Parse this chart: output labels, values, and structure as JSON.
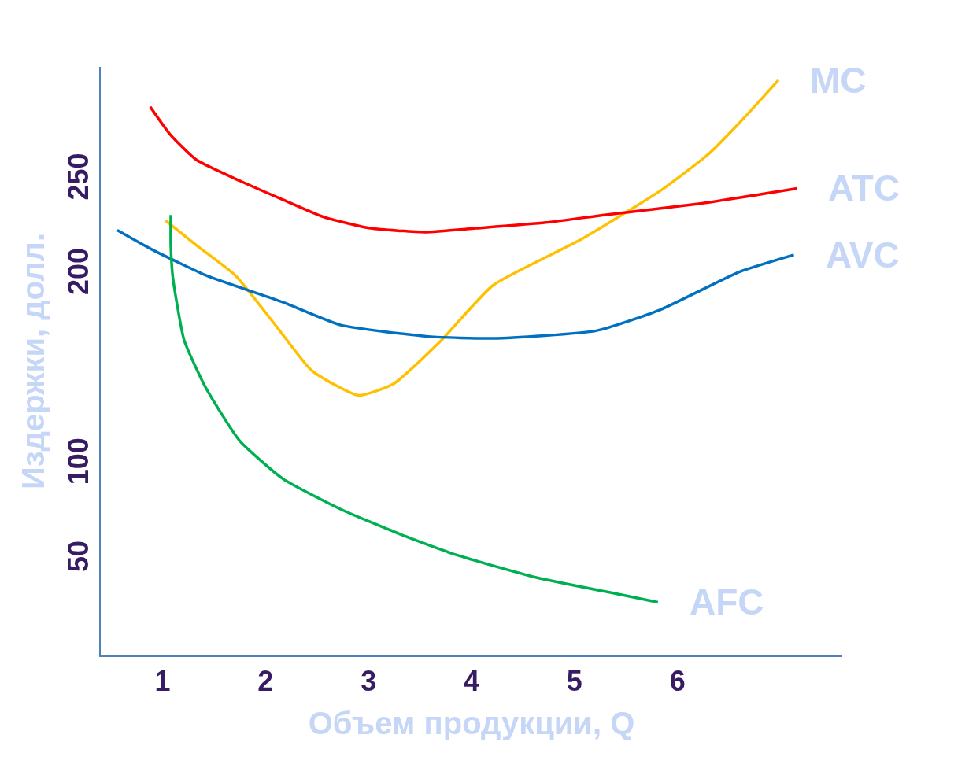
{
  "chart_data": {
    "type": "line",
    "xlabel": "Объем продукции, Q",
    "ylabel": "Издержки, долл.",
    "xlim": [
      0.4,
      7.6
    ],
    "xticks": [
      1,
      2,
      3,
      4,
      5,
      6
    ],
    "ylim": [
      0,
      310
    ],
    "yticks": [
      50,
      100,
      200,
      250
    ],
    "legend": false,
    "marker": "none",
    "line_style": "solid",
    "series": [
      {
        "name": "MC",
        "color": "#ffc000",
        "x": [
          1.03,
          1.33,
          1.71,
          2.11,
          2.45,
          2.9,
          3.24,
          3.69,
          4.21,
          5.06,
          5.84,
          6.3,
          6.61,
          6.98
        ],
        "values": [
          229,
          216,
          200,
          173,
          150,
          137,
          143,
          165,
          195,
          219,
          245,
          264,
          281,
          303
        ]
      },
      {
        "name": "ATC",
        "color": "#ff0000",
        "x": [
          0.88,
          1.08,
          1.33,
          1.75,
          2.17,
          2.56,
          3.02,
          3.55,
          4.04,
          4.72,
          5.29,
          6.22,
          7.16
        ],
        "values": [
          289,
          274,
          261,
          250,
          240,
          231,
          225,
          223,
          225,
          228,
          232,
          238,
          246
        ]
      },
      {
        "name": "AVC",
        "color": "#0070c0",
        "x": [
          0.56,
          0.89,
          1.43,
          2.17,
          2.73,
          3.58,
          4.21,
          5.21,
          5.83,
          6.6,
          7.13
        ],
        "values": [
          224,
          214,
          200,
          186,
          174,
          168,
          167,
          171,
          182,
          202,
          211
        ]
      },
      {
        "name": "AFC",
        "color": "#00b050",
        "x": [
          1.08,
          1.08,
          1.1,
          1.21,
          1.42,
          1.75,
          2.17,
          2.73,
          3.3,
          3.85,
          4.63,
          5.45,
          5.81
        ],
        "values": [
          232,
          216,
          199,
          166,
          141,
          113,
          93,
          77,
          64,
          53,
          41,
          32,
          28
        ]
      }
    ]
  }
}
